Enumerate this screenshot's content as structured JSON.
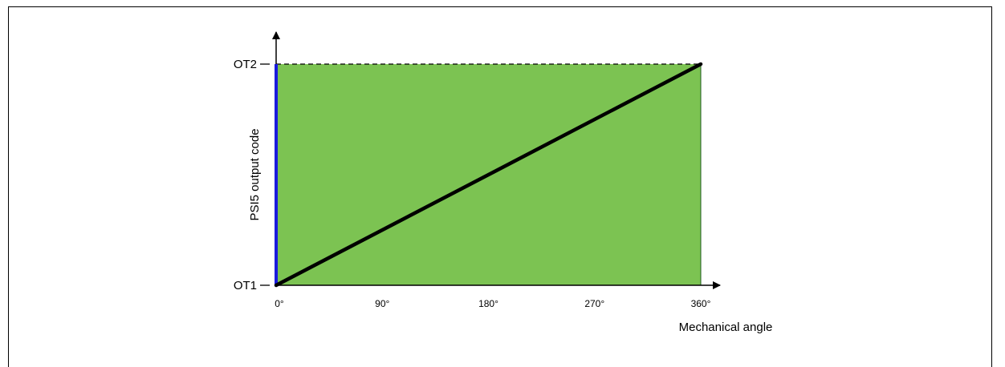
{
  "chart_data": {
    "type": "line",
    "title": "",
    "xlabel": "Mechanical angle",
    "ylabel": "PSI5 output code",
    "x_ticks": [
      "0°",
      "90°",
      "180°",
      "270°",
      "360°"
    ],
    "x_tick_values": [
      0,
      90,
      180,
      270,
      360
    ],
    "y_ticks": [
      "OT1",
      "OT2"
    ],
    "xlim": [
      0,
      360
    ],
    "ylim_labels": [
      "OT1",
      "OT2"
    ],
    "series": [
      {
        "x": [
          0,
          360
        ],
        "y": [
          "OT1",
          "OT2"
        ],
        "y_fraction": [
          0,
          1
        ],
        "color": "#000000"
      }
    ],
    "colors": {
      "fill": "#7cc352",
      "left_edge": "#1a1adc",
      "line": "#000000"
    }
  }
}
